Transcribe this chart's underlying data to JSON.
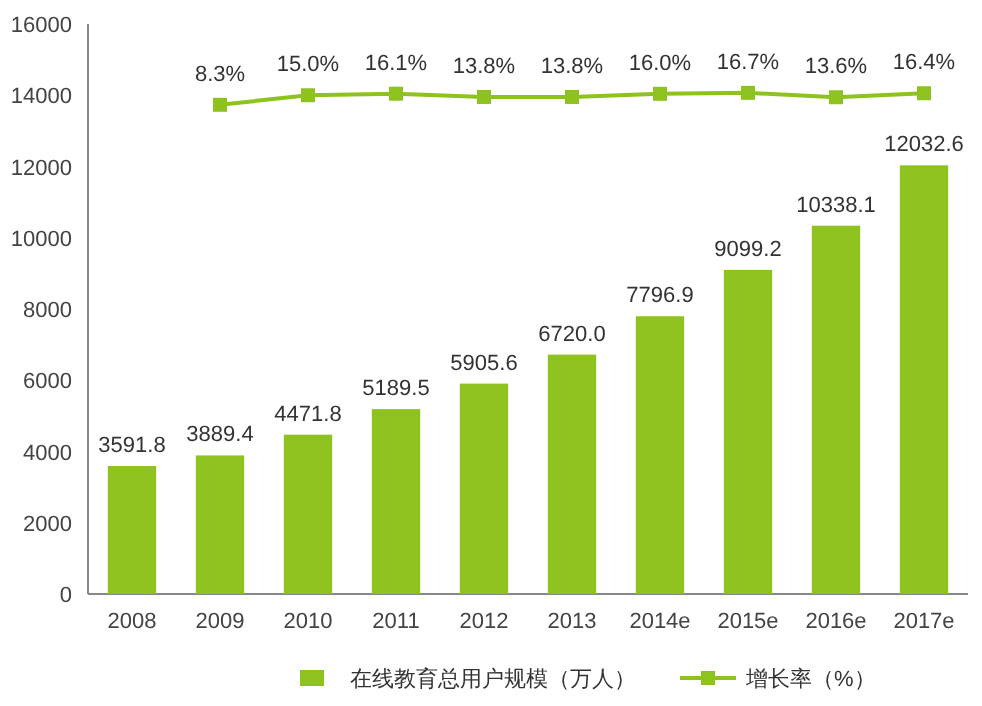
{
  "chart_data": {
    "type": "bar",
    "categories": [
      "2008",
      "2009",
      "2010",
      "2011",
      "2012",
      "2013",
      "2014e",
      "2015e",
      "2016e",
      "2017e"
    ],
    "series": [
      {
        "name": "在线教育总用户规模（万人）",
        "color": "#8dc21f",
        "values": [
          3591.8,
          3889.4,
          4471.8,
          5189.5,
          5905.6,
          6720.0,
          7796.9,
          9099.2,
          10338.1,
          12032.6
        ],
        "value_labels": [
          "3591.8",
          "3889.4",
          "4471.8",
          "5189.5",
          "5905.6",
          "6720.0",
          "7796.9",
          "9099.2",
          "10338.1",
          "12032.6"
        ]
      },
      {
        "name": "增长率（%）",
        "type": "line",
        "axis": "y2",
        "color": "#8dc21f",
        "values": [
          null,
          8.3,
          15.0,
          16.1,
          13.8,
          13.8,
          16.0,
          16.7,
          13.6,
          16.4
        ],
        "value_labels": [
          null,
          "8.3%",
          "15.0%",
          "16.1%",
          "13.8%",
          "13.8%",
          "16.0%",
          "16.7%",
          "13.6%",
          "16.4%"
        ]
      }
    ],
    "ylim": [
      0,
      16000
    ],
    "yticks": [
      0,
      2000,
      4000,
      6000,
      8000,
      10000,
      12000,
      14000,
      16000
    ],
    "y2lim": [
      -335,
      65
    ],
    "tick_labels": "xy",
    "marker": "square",
    "grid": false,
    "legend": "bottom"
  }
}
